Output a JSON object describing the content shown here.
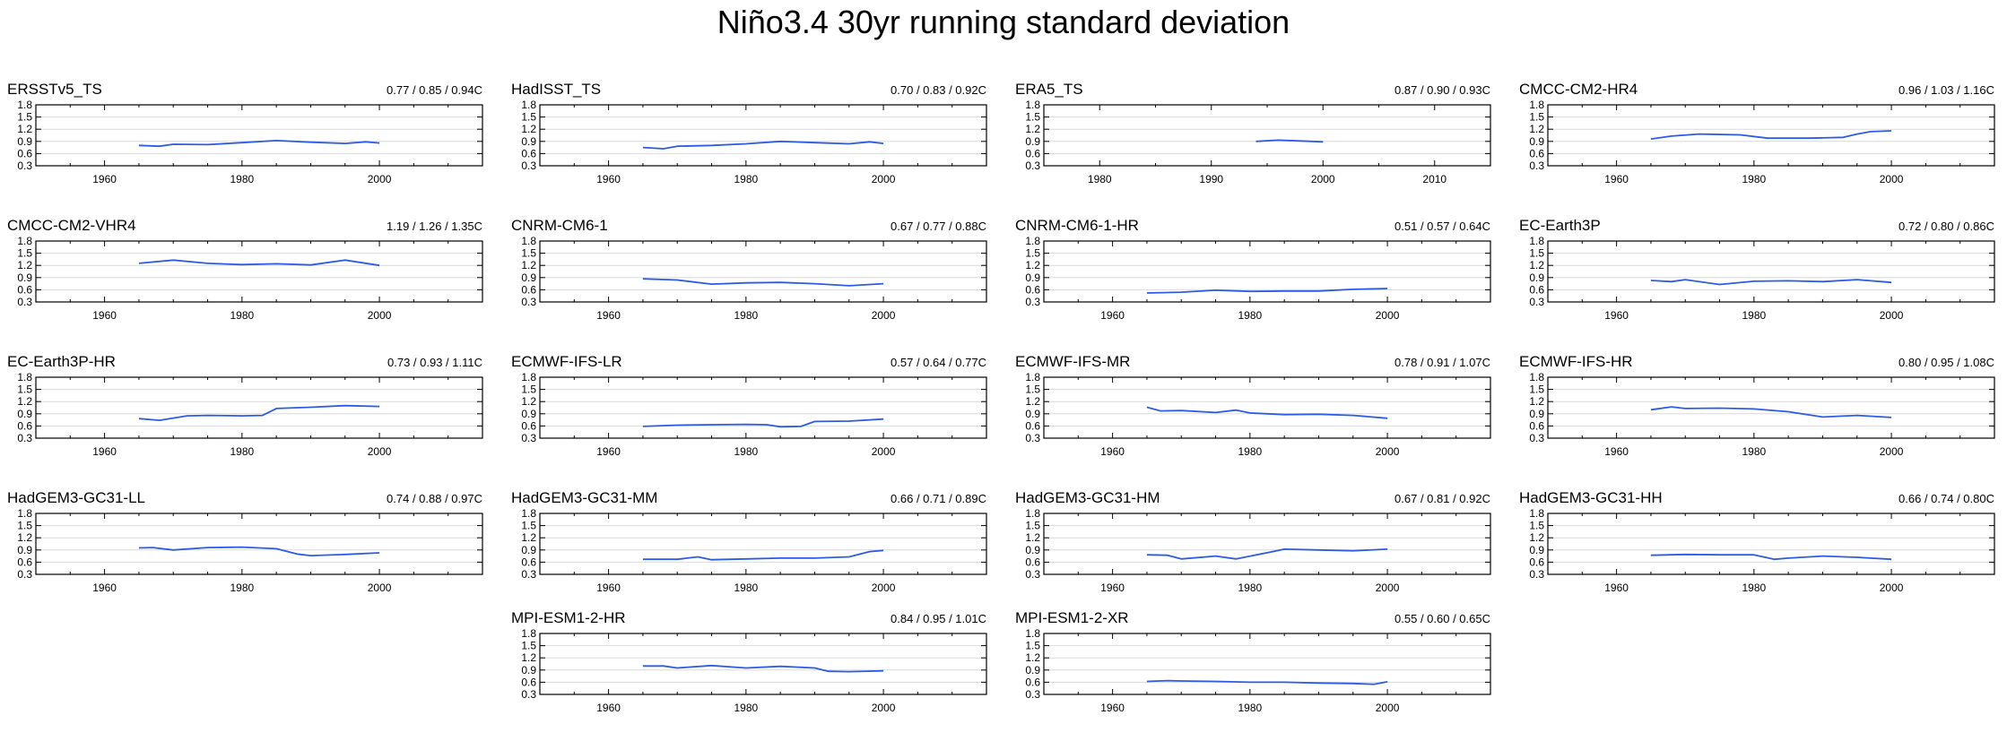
{
  "title": "Niño3.4 30yr running standard deviation",
  "style": {
    "line_color": "#2d5be3",
    "grid_color": "#d9d9d9",
    "axis_color": "#000000"
  },
  "chart_data": [
    {
      "type": "line",
      "title": "ERSSTv5_TS",
      "stats": "0.77 / 0.85 / 0.94C",
      "xlim": [
        1950,
        2015
      ],
      "ylim": [
        0.3,
        1.8
      ],
      "xticks": [
        1960,
        1980,
        2000
      ],
      "yticks": [
        0.3,
        0.6,
        0.9,
        1.2,
        1.5,
        1.8
      ],
      "grid": true,
      "series": [
        {
          "x": [
            1965,
            1968,
            1970,
            1975,
            1980,
            1985,
            1990,
            1995,
            1998,
            2000
          ],
          "y": [
            0.8,
            0.78,
            0.83,
            0.82,
            0.87,
            0.92,
            0.88,
            0.85,
            0.89,
            0.86
          ]
        }
      ]
    },
    {
      "type": "line",
      "title": "HadISST_TS",
      "stats": "0.70 / 0.83 / 0.92C",
      "xlim": [
        1950,
        2015
      ],
      "ylim": [
        0.3,
        1.8
      ],
      "xticks": [
        1960,
        1980,
        2000
      ],
      "yticks": [
        0.3,
        0.6,
        0.9,
        1.2,
        1.5,
        1.8
      ],
      "grid": true,
      "series": [
        {
          "x": [
            1965,
            1968,
            1970,
            1975,
            1980,
            1985,
            1990,
            1995,
            1998,
            2000
          ],
          "y": [
            0.75,
            0.72,
            0.78,
            0.8,
            0.84,
            0.9,
            0.87,
            0.84,
            0.89,
            0.85
          ]
        }
      ]
    },
    {
      "type": "line",
      "title": "ERA5_TS",
      "stats": "0.87 / 0.90 / 0.93C",
      "xlim": [
        1975,
        2015
      ],
      "ylim": [
        0.3,
        1.8
      ],
      "xticks": [
        1980,
        1990,
        2000,
        2010
      ],
      "yticks": [
        0.3,
        0.6,
        0.9,
        1.2,
        1.5,
        1.8
      ],
      "grid": true,
      "series": [
        {
          "x": [
            1994,
            1996,
            1998,
            2000
          ],
          "y": [
            0.9,
            0.93,
            0.91,
            0.89
          ]
        }
      ]
    },
    {
      "type": "line",
      "title": "CMCC-CM2-HR4",
      "stats": "0.96 / 1.03 / 1.16C",
      "xlim": [
        1950,
        2015
      ],
      "ylim": [
        0.3,
        1.8
      ],
      "xticks": [
        1960,
        1980,
        2000
      ],
      "yticks": [
        0.3,
        0.6,
        0.9,
        1.2,
        1.5,
        1.8
      ],
      "grid": true,
      "series": [
        {
          "x": [
            1965,
            1968,
            1972,
            1978,
            1982,
            1988,
            1993,
            1995,
            1997,
            2000
          ],
          "y": [
            0.96,
            1.03,
            1.08,
            1.06,
            0.98,
            0.98,
            1.0,
            1.08,
            1.14,
            1.16
          ]
        }
      ]
    },
    {
      "type": "line",
      "title": "CMCC-CM2-VHR4",
      "stats": "1.19 / 1.26 / 1.35C",
      "xlim": [
        1950,
        2015
      ],
      "ylim": [
        0.3,
        1.8
      ],
      "xticks": [
        1960,
        1980,
        2000
      ],
      "yticks": [
        0.3,
        0.6,
        0.9,
        1.2,
        1.5,
        1.8
      ],
      "grid": true,
      "series": [
        {
          "x": [
            1965,
            1970,
            1975,
            1980,
            1985,
            1990,
            1995,
            2000
          ],
          "y": [
            1.25,
            1.33,
            1.25,
            1.22,
            1.24,
            1.21,
            1.33,
            1.2
          ]
        }
      ]
    },
    {
      "type": "line",
      "title": "CNRM-CM6-1",
      "stats": "0.67 / 0.77 / 0.88C",
      "xlim": [
        1950,
        2015
      ],
      "ylim": [
        0.3,
        1.8
      ],
      "xticks": [
        1960,
        1980,
        2000
      ],
      "yticks": [
        0.3,
        0.6,
        0.9,
        1.2,
        1.5,
        1.8
      ],
      "grid": true,
      "series": [
        {
          "x": [
            1965,
            1970,
            1975,
            1980,
            1985,
            1990,
            1995,
            2000
          ],
          "y": [
            0.87,
            0.84,
            0.74,
            0.77,
            0.78,
            0.75,
            0.7,
            0.75
          ]
        }
      ]
    },
    {
      "type": "line",
      "title": "CNRM-CM6-1-HR",
      "stats": "0.51 / 0.57 / 0.64C",
      "xlim": [
        1950,
        2015
      ],
      "ylim": [
        0.3,
        1.8
      ],
      "xticks": [
        1960,
        1980,
        2000
      ],
      "yticks": [
        0.3,
        0.6,
        0.9,
        1.2,
        1.5,
        1.8
      ],
      "grid": true,
      "series": [
        {
          "x": [
            1965,
            1970,
            1975,
            1980,
            1985,
            1990,
            1995,
            2000
          ],
          "y": [
            0.52,
            0.54,
            0.59,
            0.56,
            0.57,
            0.57,
            0.61,
            0.63
          ]
        }
      ]
    },
    {
      "type": "line",
      "title": "EC-Earth3P",
      "stats": "0.72 / 0.80 / 0.86C",
      "xlim": [
        1950,
        2015
      ],
      "ylim": [
        0.3,
        1.8
      ],
      "xticks": [
        1960,
        1980,
        2000
      ],
      "yticks": [
        0.3,
        0.6,
        0.9,
        1.2,
        1.5,
        1.8
      ],
      "grid": true,
      "series": [
        {
          "x": [
            1965,
            1968,
            1970,
            1975,
            1980,
            1985,
            1990,
            1995,
            2000
          ],
          "y": [
            0.83,
            0.8,
            0.85,
            0.73,
            0.81,
            0.82,
            0.8,
            0.85,
            0.78
          ]
        }
      ]
    },
    {
      "type": "line",
      "title": "EC-Earth3P-HR",
      "stats": "0.73 / 0.93 / 1.11C",
      "xlim": [
        1950,
        2015
      ],
      "ylim": [
        0.3,
        1.8
      ],
      "xticks": [
        1960,
        1980,
        2000
      ],
      "yticks": [
        0.3,
        0.6,
        0.9,
        1.2,
        1.5,
        1.8
      ],
      "grid": true,
      "series": [
        {
          "x": [
            1965,
            1968,
            1972,
            1975,
            1980,
            1983,
            1985,
            1990,
            1995,
            2000
          ],
          "y": [
            0.78,
            0.74,
            0.85,
            0.86,
            0.85,
            0.86,
            1.03,
            1.06,
            1.1,
            1.08
          ]
        }
      ]
    },
    {
      "type": "line",
      "title": "ECMWF-IFS-LR",
      "stats": "0.57 / 0.64 / 0.77C",
      "xlim": [
        1950,
        2015
      ],
      "ylim": [
        0.3,
        1.8
      ],
      "xticks": [
        1960,
        1980,
        2000
      ],
      "yticks": [
        0.3,
        0.6,
        0.9,
        1.2,
        1.5,
        1.8
      ],
      "grid": true,
      "series": [
        {
          "x": [
            1965,
            1970,
            1975,
            1980,
            1983,
            1985,
            1988,
            1990,
            1995,
            2000
          ],
          "y": [
            0.59,
            0.62,
            0.63,
            0.64,
            0.63,
            0.58,
            0.59,
            0.71,
            0.72,
            0.77
          ]
        }
      ]
    },
    {
      "type": "line",
      "title": "ECMWF-IFS-MR",
      "stats": "0.78 / 0.91 / 1.07C",
      "xlim": [
        1950,
        2015
      ],
      "ylim": [
        0.3,
        1.8
      ],
      "xticks": [
        1960,
        1980,
        2000
      ],
      "yticks": [
        0.3,
        0.6,
        0.9,
        1.2,
        1.5,
        1.8
      ],
      "grid": true,
      "series": [
        {
          "x": [
            1965,
            1967,
            1970,
            1975,
            1978,
            1980,
            1985,
            1990,
            1995,
            2000
          ],
          "y": [
            1.06,
            0.97,
            0.98,
            0.93,
            0.99,
            0.92,
            0.88,
            0.89,
            0.86,
            0.79
          ]
        }
      ]
    },
    {
      "type": "line",
      "title": "ECMWF-IFS-HR",
      "stats": "0.80 / 0.95 / 1.08C",
      "xlim": [
        1950,
        2015
      ],
      "ylim": [
        0.3,
        1.8
      ],
      "xticks": [
        1960,
        1980,
        2000
      ],
      "yticks": [
        0.3,
        0.6,
        0.9,
        1.2,
        1.5,
        1.8
      ],
      "grid": true,
      "series": [
        {
          "x": [
            1965,
            1968,
            1970,
            1975,
            1980,
            1985,
            1990,
            1995,
            2000
          ],
          "y": [
            1.0,
            1.07,
            1.03,
            1.04,
            1.02,
            0.95,
            0.82,
            0.86,
            0.81
          ]
        }
      ]
    },
    {
      "type": "line",
      "title": "HadGEM3-GC31-LL",
      "stats": "0.74 / 0.88 / 0.97C",
      "xlim": [
        1950,
        2015
      ],
      "ylim": [
        0.3,
        1.8
      ],
      "xticks": [
        1960,
        1980,
        2000
      ],
      "yticks": [
        0.3,
        0.6,
        0.9,
        1.2,
        1.5,
        1.8
      ],
      "grid": true,
      "series": [
        {
          "x": [
            1965,
            1967,
            1970,
            1975,
            1980,
            1985,
            1988,
            1990,
            1995,
            2000
          ],
          "y": [
            0.95,
            0.96,
            0.9,
            0.96,
            0.97,
            0.93,
            0.8,
            0.76,
            0.79,
            0.83
          ]
        }
      ]
    },
    {
      "type": "line",
      "title": "HadGEM3-GC31-MM",
      "stats": "0.66 / 0.71 / 0.89C",
      "xlim": [
        1950,
        2015
      ],
      "ylim": [
        0.3,
        1.8
      ],
      "xticks": [
        1960,
        1980,
        2000
      ],
      "yticks": [
        0.3,
        0.6,
        0.9,
        1.2,
        1.5,
        1.8
      ],
      "grid": true,
      "series": [
        {
          "x": [
            1965,
            1970,
            1973,
            1975,
            1980,
            1985,
            1990,
            1995,
            1998,
            2000
          ],
          "y": [
            0.67,
            0.67,
            0.73,
            0.66,
            0.68,
            0.7,
            0.7,
            0.73,
            0.86,
            0.89
          ]
        }
      ]
    },
    {
      "type": "line",
      "title": "HadGEM3-GC31-HM",
      "stats": "0.67 / 0.81 / 0.92C",
      "xlim": [
        1950,
        2015
      ],
      "ylim": [
        0.3,
        1.8
      ],
      "xticks": [
        1960,
        1980,
        2000
      ],
      "yticks": [
        0.3,
        0.6,
        0.9,
        1.2,
        1.5,
        1.8
      ],
      "grid": true,
      "series": [
        {
          "x": [
            1965,
            1968,
            1970,
            1975,
            1978,
            1983,
            1985,
            1990,
            1995,
            2000
          ],
          "y": [
            0.78,
            0.77,
            0.68,
            0.75,
            0.68,
            0.85,
            0.92,
            0.9,
            0.88,
            0.92
          ]
        }
      ]
    },
    {
      "type": "line",
      "title": "HadGEM3-GC31-HH",
      "stats": "0.66 / 0.74 / 0.80C",
      "xlim": [
        1950,
        2015
      ],
      "ylim": [
        0.3,
        1.8
      ],
      "xticks": [
        1960,
        1980,
        2000
      ],
      "yticks": [
        0.3,
        0.6,
        0.9,
        1.2,
        1.5,
        1.8
      ],
      "grid": true,
      "series": [
        {
          "x": [
            1965,
            1970,
            1975,
            1980,
            1983,
            1985,
            1990,
            1995,
            2000
          ],
          "y": [
            0.77,
            0.79,
            0.78,
            0.78,
            0.67,
            0.7,
            0.75,
            0.72,
            0.67
          ]
        }
      ]
    },
    {
      "type": "line",
      "title": "MPI-ESM1-2-HR",
      "stats": "0.84 / 0.95 / 1.01C",
      "xlim": [
        1950,
        2015
      ],
      "ylim": [
        0.3,
        1.8
      ],
      "xticks": [
        1960,
        1980,
        2000
      ],
      "yticks": [
        0.3,
        0.6,
        0.9,
        1.2,
        1.5,
        1.8
      ],
      "grid": true,
      "series": [
        {
          "x": [
            1965,
            1968,
            1970,
            1975,
            1980,
            1985,
            1990,
            1992,
            1995,
            2000
          ],
          "y": [
            1.0,
            1.0,
            0.95,
            1.01,
            0.95,
            0.99,
            0.95,
            0.87,
            0.86,
            0.88
          ]
        }
      ]
    },
    {
      "type": "line",
      "title": "MPI-ESM1-2-XR",
      "stats": "0.55 / 0.60 / 0.65C",
      "xlim": [
        1950,
        2015
      ],
      "ylim": [
        0.3,
        1.8
      ],
      "xticks": [
        1960,
        1980,
        2000
      ],
      "yticks": [
        0.3,
        0.6,
        0.9,
        1.2,
        1.5,
        1.8
      ],
      "grid": true,
      "series": [
        {
          "x": [
            1965,
            1968,
            1970,
            1975,
            1980,
            1985,
            1990,
            1995,
            1998,
            2000
          ],
          "y": [
            0.62,
            0.64,
            0.63,
            0.62,
            0.6,
            0.6,
            0.58,
            0.57,
            0.55,
            0.61
          ]
        }
      ]
    }
  ]
}
